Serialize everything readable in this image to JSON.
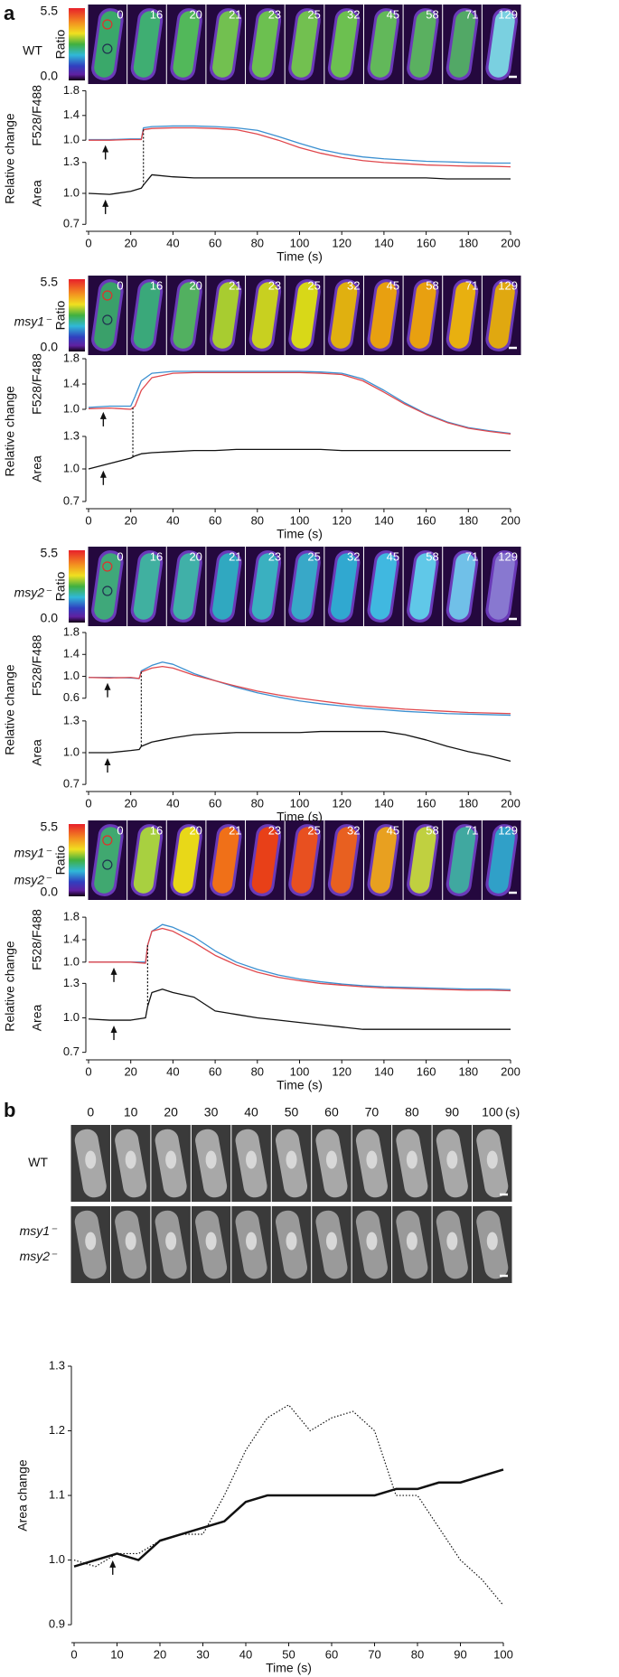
{
  "panel_labels": [
    "a",
    "b"
  ],
  "panel_a": [
    {
      "genotype": [
        "WT"
      ],
      "genotype_italic": false,
      "colorbar": {
        "ticks": [
          5.5,
          {
            "value": 0,
            "label": "0.0"
          }
        ],
        "label": "Ratio"
      },
      "frames": [
        0,
        16,
        20,
        21,
        23,
        25,
        32,
        45,
        58,
        71,
        129
      ]
    },
    {
      "genotype": [
        "msy1⁻"
      ],
      "genotype_italic": true,
      "colorbar": {
        "ticks": [
          5.5,
          {
            "value": 0,
            "label": "0.0"
          }
        ],
        "label": "Ratio"
      },
      "frames": [
        0,
        16,
        20,
        21,
        23,
        25,
        32,
        45,
        58,
        71,
        129
      ]
    },
    {
      "genotype": [
        "msy2⁻"
      ],
      "genotype_italic": true,
      "colorbar": {
        "ticks": [
          5.5,
          {
            "value": 0,
            "label": "0.0"
          }
        ],
        "label": "Ratio"
      },
      "frames": [
        0,
        16,
        20,
        21,
        23,
        25,
        32,
        45,
        58,
        71,
        129
      ]
    },
    {
      "genotype": [
        "msy1⁻",
        "msy2⁻"
      ],
      "genotype_italic": true,
      "colorbar": {
        "ticks": [
          5.5,
          {
            "value": 0,
            "label": "0.0"
          }
        ],
        "label": "Ratio"
      },
      "frames": [
        0,
        16,
        20,
        21,
        23,
        25,
        32,
        45,
        58,
        71,
        129
      ]
    }
  ],
  "panel_b": {
    "frames": [
      0,
      10,
      20,
      30,
      40,
      50,
      60,
      70,
      80,
      90,
      100
    ],
    "unit": "(s)",
    "rows": [
      {
        "genotype": [
          "WT"
        ],
        "genotype_italic": false
      },
      {
        "genotype": [
          "msy1⁻",
          "msy2⁻"
        ],
        "genotype_italic": true
      }
    ]
  },
  "chart_data": [
    {
      "type": "line",
      "ylabel": "F528/F488",
      "ylabel_outer": "Relative change",
      "xlim": [
        0,
        200
      ],
      "ylim": [
        0.55,
        1.85
      ],
      "yticks": [
        {
          "value": 1,
          "label": "1.0"
        },
        1.4,
        1.8
      ],
      "arrow_x": 8,
      "event_x": 26,
      "x": [
        0,
        10,
        20,
        25,
        26,
        30,
        40,
        50,
        60,
        70,
        80,
        90,
        100,
        110,
        120,
        130,
        140,
        150,
        160,
        170,
        180,
        190,
        200
      ],
      "series": [
        {
          "color": "#3a8fd0",
          "values": [
            1.01,
            1.01,
            1.02,
            1.02,
            1.2,
            1.22,
            1.23,
            1.23,
            1.22,
            1.2,
            1.16,
            1.06,
            0.95,
            0.85,
            0.78,
            0.73,
            0.7,
            0.68,
            0.66,
            0.65,
            0.64,
            0.63,
            0.63
          ]
        },
        {
          "color": "#e0474c",
          "values": [
            1.0,
            1.0,
            1.01,
            1.01,
            1.17,
            1.19,
            1.2,
            1.2,
            1.19,
            1.17,
            1.1,
            1.0,
            0.88,
            0.79,
            0.72,
            0.67,
            0.64,
            0.62,
            0.6,
            0.59,
            0.58,
            0.58,
            0.57
          ]
        }
      ]
    },
    {
      "type": "line",
      "ylabel": "Area",
      "xlabel": "Time (s)",
      "xlim": [
        0,
        200
      ],
      "ylim": [
        0.65,
        1.35
      ],
      "yticks": [
        0.7,
        {
          "value": 1,
          "label": "1.0"
        },
        1.3
      ],
      "xticks": [
        0,
        20,
        40,
        60,
        80,
        100,
        120,
        140,
        160,
        180,
        200
      ],
      "arrow_x": 8,
      "x": [
        0,
        10,
        20,
        25,
        26,
        30,
        40,
        50,
        60,
        70,
        80,
        90,
        100,
        110,
        120,
        130,
        140,
        150,
        160,
        170,
        180,
        190,
        200
      ],
      "series": [
        {
          "color": "#111111",
          "values": [
            1.0,
            0.99,
            1.02,
            1.05,
            1.08,
            1.18,
            1.16,
            1.15,
            1.15,
            1.15,
            1.15,
            1.15,
            1.15,
            1.15,
            1.15,
            1.15,
            1.15,
            1.15,
            1.15,
            1.14,
            1.14,
            1.14,
            1.14
          ]
        }
      ]
    },
    {
      "type": "line",
      "ylabel": "F528/F488",
      "ylabel_outer": "Relative change",
      "xlim": [
        0,
        200
      ],
      "ylim": [
        0.55,
        1.85
      ],
      "yticks": [
        {
          "value": 1,
          "label": "1.0"
        },
        1.4,
        1.8
      ],
      "arrow_x": 7,
      "event_x": 21,
      "x": [
        0,
        10,
        20,
        22,
        25,
        30,
        40,
        50,
        60,
        70,
        80,
        90,
        100,
        110,
        120,
        130,
        140,
        150,
        160,
        170,
        180,
        190,
        200
      ],
      "series": [
        {
          "color": "#3a8fd0",
          "values": [
            1.03,
            1.05,
            1.05,
            1.2,
            1.45,
            1.57,
            1.6,
            1.6,
            1.6,
            1.6,
            1.6,
            1.6,
            1.6,
            1.59,
            1.57,
            1.48,
            1.3,
            1.1,
            0.93,
            0.8,
            0.71,
            0.66,
            0.62
          ]
        },
        {
          "color": "#e0474c",
          "values": [
            1.01,
            1.02,
            1.0,
            1.05,
            1.3,
            1.5,
            1.57,
            1.58,
            1.58,
            1.58,
            1.58,
            1.58,
            1.58,
            1.57,
            1.55,
            1.45,
            1.27,
            1.08,
            0.92,
            0.79,
            0.7,
            0.65,
            0.61
          ]
        }
      ]
    },
    {
      "type": "line",
      "ylabel": "Area",
      "xlabel": "Time (s)",
      "xlim": [
        0,
        200
      ],
      "ylim": [
        0.65,
        1.35
      ],
      "yticks": [
        0.7,
        {
          "value": 1,
          "label": "1.0"
        },
        1.3
      ],
      "xticks": [
        0,
        20,
        40,
        60,
        80,
        100,
        120,
        140,
        160,
        180,
        200
      ],
      "arrow_x": 7,
      "x": [
        0,
        10,
        20,
        22,
        25,
        30,
        40,
        50,
        60,
        70,
        80,
        90,
        100,
        110,
        120,
        130,
        140,
        150,
        160,
        170,
        180,
        190,
        200
      ],
      "series": [
        {
          "color": "#111111",
          "values": [
            1.0,
            1.05,
            1.1,
            1.12,
            1.14,
            1.15,
            1.16,
            1.17,
            1.17,
            1.18,
            1.18,
            1.18,
            1.18,
            1.18,
            1.17,
            1.17,
            1.17,
            1.17,
            1.17,
            1.17,
            1.17,
            1.17,
            1.17
          ]
        }
      ]
    },
    {
      "type": "line",
      "ylabel": "F528/F488",
      "ylabel_outer": "Relative change",
      "xlim": [
        0,
        200
      ],
      "ylim": [
        0.2,
        1.85
      ],
      "yticks": [
        0.6,
        {
          "value": 1,
          "label": "1.0"
        },
        1.4,
        1.8
      ],
      "arrow_x": 9,
      "event_x": 25,
      "x": [
        0,
        10,
        20,
        24,
        25,
        30,
        35,
        40,
        50,
        60,
        70,
        80,
        90,
        100,
        110,
        120,
        130,
        140,
        150,
        160,
        170,
        180,
        190,
        200
      ],
      "series": [
        {
          "color": "#3a8fd0",
          "values": [
            0.98,
            0.98,
            0.97,
            0.96,
            1.1,
            1.2,
            1.26,
            1.22,
            1.05,
            0.92,
            0.8,
            0.7,
            0.62,
            0.55,
            0.5,
            0.46,
            0.42,
            0.39,
            0.36,
            0.34,
            0.32,
            0.31,
            0.3,
            0.29
          ]
        },
        {
          "color": "#e0474c",
          "values": [
            0.98,
            0.97,
            0.98,
            0.96,
            1.08,
            1.15,
            1.18,
            1.15,
            1.02,
            0.92,
            0.82,
            0.73,
            0.66,
            0.6,
            0.55,
            0.5,
            0.46,
            0.43,
            0.4,
            0.38,
            0.36,
            0.34,
            0.33,
            0.32
          ]
        }
      ]
    },
    {
      "type": "line",
      "ylabel": "Area",
      "xlabel": "Time (s)",
      "xlim": [
        0,
        200
      ],
      "ylim": [
        0.65,
        1.35
      ],
      "yticks": [
        0.7,
        {
          "value": 1,
          "label": "1.0"
        },
        1.3
      ],
      "xticks": [
        0,
        20,
        40,
        60,
        80,
        100,
        120,
        140,
        160,
        180,
        200
      ],
      "arrow_x": 9,
      "x": [
        0,
        10,
        20,
        24,
        25,
        30,
        35,
        40,
        50,
        60,
        70,
        80,
        90,
        100,
        110,
        120,
        130,
        140,
        150,
        160,
        170,
        180,
        190,
        200
      ],
      "series": [
        {
          "color": "#111111",
          "values": [
            1.0,
            1.0,
            1.02,
            1.03,
            1.06,
            1.1,
            1.12,
            1.14,
            1.17,
            1.18,
            1.19,
            1.19,
            1.19,
            1.19,
            1.2,
            1.2,
            1.2,
            1.2,
            1.17,
            1.12,
            1.06,
            1.01,
            0.97,
            0.92
          ]
        }
      ]
    },
    {
      "type": "line",
      "ylabel": "F528/F488",
      "ylabel_outer": "Relative change",
      "xlim": [
        0,
        200
      ],
      "ylim": [
        0.45,
        1.85
      ],
      "yticks": [
        {
          "value": 1,
          "label": "1.0"
        },
        1.4,
        1.8
      ],
      "arrow_x": 12,
      "event_x": 28,
      "x": [
        0,
        10,
        20,
        27,
        28,
        30,
        35,
        40,
        50,
        60,
        70,
        80,
        90,
        100,
        110,
        120,
        130,
        140,
        150,
        160,
        170,
        180,
        190,
        200
      ],
      "series": [
        {
          "color": "#3a8fd0",
          "values": [
            1.0,
            1.0,
            1.0,
            1.0,
            1.3,
            1.55,
            1.67,
            1.62,
            1.45,
            1.2,
            1.0,
            0.87,
            0.77,
            0.7,
            0.65,
            0.61,
            0.58,
            0.56,
            0.55,
            0.54,
            0.53,
            0.52,
            0.52,
            0.51
          ]
        },
        {
          "color": "#e0474c",
          "values": [
            1.0,
            1.0,
            1.0,
            0.98,
            1.3,
            1.55,
            1.6,
            1.55,
            1.35,
            1.12,
            0.95,
            0.82,
            0.73,
            0.67,
            0.62,
            0.59,
            0.56,
            0.54,
            0.53,
            0.52,
            0.51,
            0.5,
            0.5,
            0.49
          ]
        }
      ]
    },
    {
      "type": "line",
      "ylabel": "Area",
      "xlabel": "Time (s)",
      "xlim": [
        0,
        200
      ],
      "ylim": [
        0.65,
        1.35
      ],
      "yticks": [
        0.7,
        {
          "value": 1,
          "label": "1.0"
        },
        1.3
      ],
      "xticks": [
        0,
        20,
        40,
        60,
        80,
        100,
        120,
        140,
        160,
        180,
        200
      ],
      "arrow_x": 12,
      "x": [
        0,
        10,
        20,
        27,
        28,
        30,
        35,
        40,
        50,
        60,
        70,
        80,
        90,
        100,
        110,
        120,
        130,
        140,
        150,
        160,
        170,
        180,
        190,
        200
      ],
      "series": [
        {
          "color": "#111111",
          "values": [
            0.99,
            0.98,
            0.98,
            1.0,
            1.1,
            1.22,
            1.25,
            1.22,
            1.18,
            1.06,
            1.03,
            1.0,
            0.98,
            0.96,
            0.94,
            0.92,
            0.9,
            0.9,
            0.9,
            0.9,
            0.9,
            0.9,
            0.9,
            0.9
          ]
        }
      ]
    },
    {
      "type": "line",
      "ylabel": "Area change",
      "xlabel": "Time (s)",
      "xlim": [
        0,
        100
      ],
      "ylim": [
        0.875,
        1.3
      ],
      "yticks": [
        0.9,
        {
          "value": 1,
          "label": "1.0"
        },
        1.1,
        1.2,
        1.3
      ],
      "xticks": [
        0,
        10,
        20,
        30,
        40,
        50,
        60,
        70,
        80,
        90,
        100
      ],
      "arrow_x": 9,
      "x": [
        0,
        5,
        10,
        15,
        20,
        25,
        30,
        35,
        40,
        45,
        50,
        55,
        60,
        65,
        70,
        75,
        80,
        85,
        90,
        95,
        100
      ],
      "series": [
        {
          "color": "#111111",
          "line_width": 2.5,
          "style": "solid",
          "values": [
            0.99,
            1.0,
            1.01,
            1.0,
            1.03,
            1.04,
            1.05,
            1.06,
            1.09,
            1.1,
            1.1,
            1.1,
            1.1,
            1.1,
            1.1,
            1.11,
            1.11,
            1.12,
            1.12,
            1.13,
            1.14
          ]
        },
        {
          "color": "#111111",
          "line_width": 1.2,
          "style": "dotted",
          "values": [
            1.0,
            0.99,
            1.01,
            1.01,
            1.03,
            1.04,
            1.04,
            1.1,
            1.17,
            1.22,
            1.24,
            1.2,
            1.22,
            1.23,
            1.2,
            1.1,
            1.1,
            1.05,
            1.0,
            0.97,
            0.93
          ]
        }
      ]
    }
  ]
}
